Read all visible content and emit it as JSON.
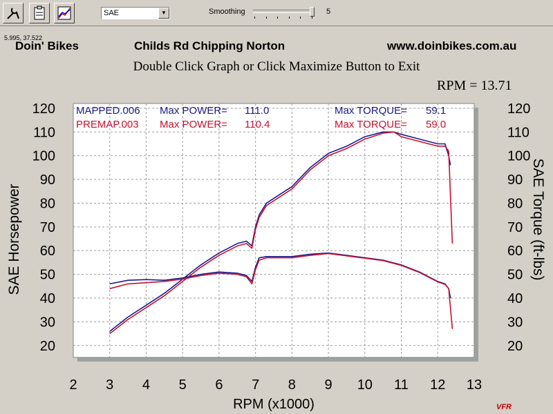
{
  "toolbar": {
    "buttons": [
      {
        "name": "tools-icon"
      },
      {
        "name": "clipboard-icon"
      },
      {
        "name": "graph-icon"
      }
    ],
    "units": {
      "selected": "SAE"
    },
    "smoothing": {
      "label": "Smoothing",
      "value": "5"
    }
  },
  "readout": {
    "coords": "5.995, 37.522",
    "rpm": "RPM = 13.71"
  },
  "header": {
    "left": "Doin' Bikes",
    "middle": "Childs Rd  Chipping Norton",
    "right": "www.doinbikes.com.au"
  },
  "instruction": "Double Click Graph or Click Maximize Button to Exit",
  "logo_text": "VFR",
  "colors": {
    "mapped": "#1a1a8c",
    "premap": "#c8102e",
    "grid": "#9a9a9a"
  },
  "chart_data": {
    "type": "line",
    "xlabel": "RPM (x1000)",
    "ylabel_left": "SAE Horsepower",
    "ylabel_right": "SAE Torque (ft-lbs)",
    "xlim": [
      2,
      13
    ],
    "ylim": [
      15,
      122
    ],
    "x_ticks": [
      "2",
      "3",
      "4",
      "5",
      "6",
      "7",
      "8",
      "9",
      "10",
      "11",
      "12",
      "13"
    ],
    "y_ticks": [
      "120",
      "110",
      "100",
      "90",
      "80",
      "70",
      "60",
      "50",
      "40",
      "30",
      "20"
    ],
    "grid": true,
    "legend": [
      {
        "run": "MAPPED.006",
        "power_label": "Max POWER=",
        "power": "111.0",
        "torque_label": "Max TORQUE=",
        "torque": "59.1",
        "series": "mapped"
      },
      {
        "run": "PREMAP.003",
        "power_label": "Max POWER=",
        "power": "110.4",
        "torque_label": "Max TORQUE=",
        "torque": "59.0",
        "series": "premap"
      }
    ],
    "series": [
      {
        "name": "MAPPED.006",
        "kind": "power",
        "color": "#1a1a8c",
        "x": [
          3.0,
          3.5,
          4.0,
          4.5,
          5.0,
          5.5,
          6.0,
          6.5,
          6.75,
          6.9,
          7.0,
          7.1,
          7.3,
          7.6,
          8.0,
          8.5,
          9.0,
          9.5,
          10.0,
          10.5,
          10.8,
          11.0,
          11.5,
          12.0,
          12.2,
          12.3,
          12.35
        ],
        "y": [
          26,
          32,
          37,
          42,
          48,
          54,
          59,
          63,
          64,
          62,
          70,
          75,
          80,
          83,
          87,
          95,
          101,
          104,
          108,
          110,
          110,
          109,
          107,
          105,
          105,
          100,
          96
        ]
      },
      {
        "name": "PREMAP.003",
        "kind": "power",
        "color": "#c8102e",
        "x": [
          3.0,
          3.5,
          4.0,
          4.5,
          5.0,
          5.5,
          6.0,
          6.5,
          6.75,
          6.9,
          7.0,
          7.1,
          7.3,
          7.6,
          8.0,
          8.5,
          9.0,
          9.5,
          10.0,
          10.5,
          10.8,
          11.0,
          11.5,
          12.0,
          12.2,
          12.3,
          12.4
        ],
        "y": [
          25,
          31,
          36,
          41,
          47,
          53,
          58,
          62,
          63,
          61,
          69,
          74,
          79,
          82,
          86,
          94,
          100,
          103,
          107,
          109.5,
          110,
          108,
          106,
          104,
          104,
          102,
          63
        ]
      },
      {
        "name": "MAPPED.006",
        "kind": "torque",
        "color": "#1a1a8c",
        "x": [
          3.0,
          3.5,
          4.0,
          4.5,
          5.0,
          5.5,
          6.0,
          6.5,
          6.75,
          6.9,
          7.0,
          7.1,
          7.3,
          7.6,
          8.0,
          8.5,
          9.0,
          9.5,
          10.0,
          10.5,
          11.0,
          11.5,
          12.0,
          12.2,
          12.3,
          12.35
        ],
        "y": [
          46,
          47.5,
          47.8,
          47.5,
          48.5,
          50,
          51,
          50.5,
          49.5,
          47,
          53,
          57,
          57.5,
          57.5,
          57.5,
          58.5,
          59,
          58,
          57,
          56,
          54,
          51,
          47,
          46,
          44,
          40
        ]
      },
      {
        "name": "PREMAP.003",
        "kind": "torque",
        "color": "#c8102e",
        "x": [
          3.0,
          3.5,
          4.0,
          4.5,
          5.0,
          5.5,
          6.0,
          6.5,
          6.75,
          6.9,
          7.0,
          7.1,
          7.3,
          7.6,
          8.0,
          8.5,
          9.0,
          9.5,
          10.0,
          10.5,
          11.0,
          11.5,
          12.0,
          12.2,
          12.3,
          12.4
        ],
        "y": [
          44,
          46,
          46.5,
          47,
          48,
          49.5,
          50.5,
          50,
          49,
          46,
          52,
          56,
          57,
          57,
          57,
          58,
          58.8,
          57.8,
          56.8,
          55.8,
          53.8,
          50.8,
          46.8,
          45.8,
          44,
          27
        ]
      }
    ]
  }
}
